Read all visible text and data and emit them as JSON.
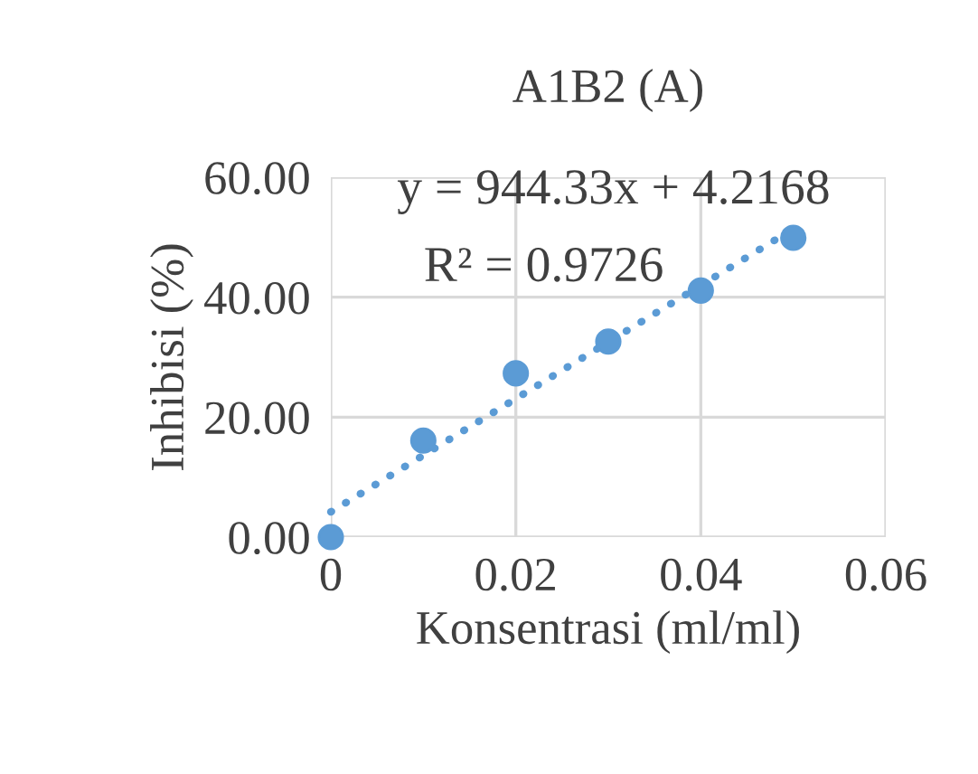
{
  "chart_data": {
    "type": "scatter",
    "title": "A1B2 (A)",
    "xlabel": "Konsentrasi (ml/ml)",
    "ylabel": "Inhibisi (%)",
    "x": [
      0,
      0.01,
      0.02,
      0.03,
      0.04,
      0.05
    ],
    "series": [
      {
        "color": "#5b9bd5",
        "values": [
          0,
          16.1,
          27.3,
          32.6,
          41.1,
          49.9
        ],
        "marker": "circle"
      },
      {
        "type": "line",
        "color": "#5b9bd5",
        "x": [
          0,
          0.05
        ],
        "values": [
          4.2,
          51.4
        ],
        "line_style": "dotted",
        "marker": "none"
      }
    ],
    "annotations": [
      "y = 944.33x + 4.2168",
      "R² = 0.9726"
    ],
    "xlim": [
      0,
      0.06
    ],
    "xticks": [
      0,
      0.02,
      0.04,
      0.06
    ],
    "ylim": [
      0,
      60
    ],
    "yticks": [
      {
        "value": 0,
        "label": "0.00"
      },
      {
        "value": 20,
        "label": "20.00"
      },
      {
        "value": 40,
        "label": "40.00"
      },
      {
        "value": 60,
        "label": "60.00"
      }
    ],
    "grid": true,
    "legend": false
  }
}
